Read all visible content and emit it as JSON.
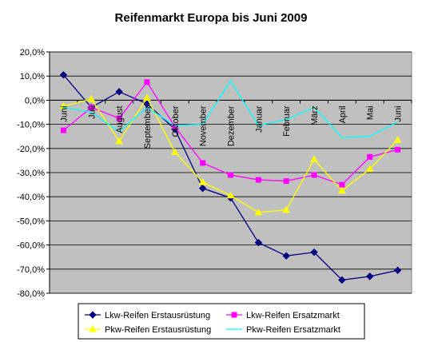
{
  "chart_data": {
    "type": "line",
    "title": "Reifenmarkt Europa bis Juni 2009",
    "xlabel": "",
    "ylabel": "",
    "categories": [
      "Juni",
      "Juli",
      "August",
      "September",
      "Oktober",
      "November",
      "Dezember",
      "Januar",
      "Februar",
      "März",
      "April",
      "Mai",
      "Juni"
    ],
    "ylim": [
      -80,
      20
    ],
    "yticks": [
      20,
      10,
      0,
      -10,
      -20,
      -30,
      -40,
      -50,
      -60,
      -70,
      -80
    ],
    "ytick_labels": [
      "20,0%",
      "10,0%",
      "0,0%",
      "-10,0%",
      "-20,0%",
      "-30,0%",
      "-40,0%",
      "-50,0%",
      "-60,0%",
      "-70,0%",
      "-80,0%"
    ],
    "grid": "horizontal",
    "plot_background": "#c0c0c0",
    "legend_position": "bottom",
    "series": [
      {
        "name": "Lkw-Reifen Erstausrüstung",
        "color": "#000080",
        "marker": "diamond",
        "values": [
          10.5,
          -3,
          3.5,
          -1.5,
          -12,
          -36.5,
          -40.5,
          -59,
          -64.5,
          -63,
          -74.5,
          -73,
          -70.5
        ]
      },
      {
        "name": "Lkw-Reifen Ersatzmarkt",
        "color": "#ff00ff",
        "marker": "square",
        "values": [
          -12.5,
          -3,
          -7.5,
          7.5,
          -11,
          -26,
          -31,
          -33,
          -33.5,
          -31,
          -35,
          -23.5,
          -20.5
        ]
      },
      {
        "name": "Pkw-Reifen Erstausrüstung",
        "color": "#ffff00",
        "marker": "triangle",
        "values": [
          -2.5,
          0.5,
          -17,
          1,
          -21.5,
          -34,
          -39.5,
          -46.5,
          -45.5,
          -24.5,
          -37.5,
          -28.5,
          -16.5
        ]
      },
      {
        "name": "Pkw-Reifen Ersatzmarkt",
        "color": "#00ffff",
        "marker": "none",
        "values": [
          -3,
          -5,
          -13,
          -3,
          -10.5,
          -10,
          8,
          -10.5,
          -8,
          -3,
          -15.5,
          -15,
          -9
        ]
      }
    ]
  }
}
